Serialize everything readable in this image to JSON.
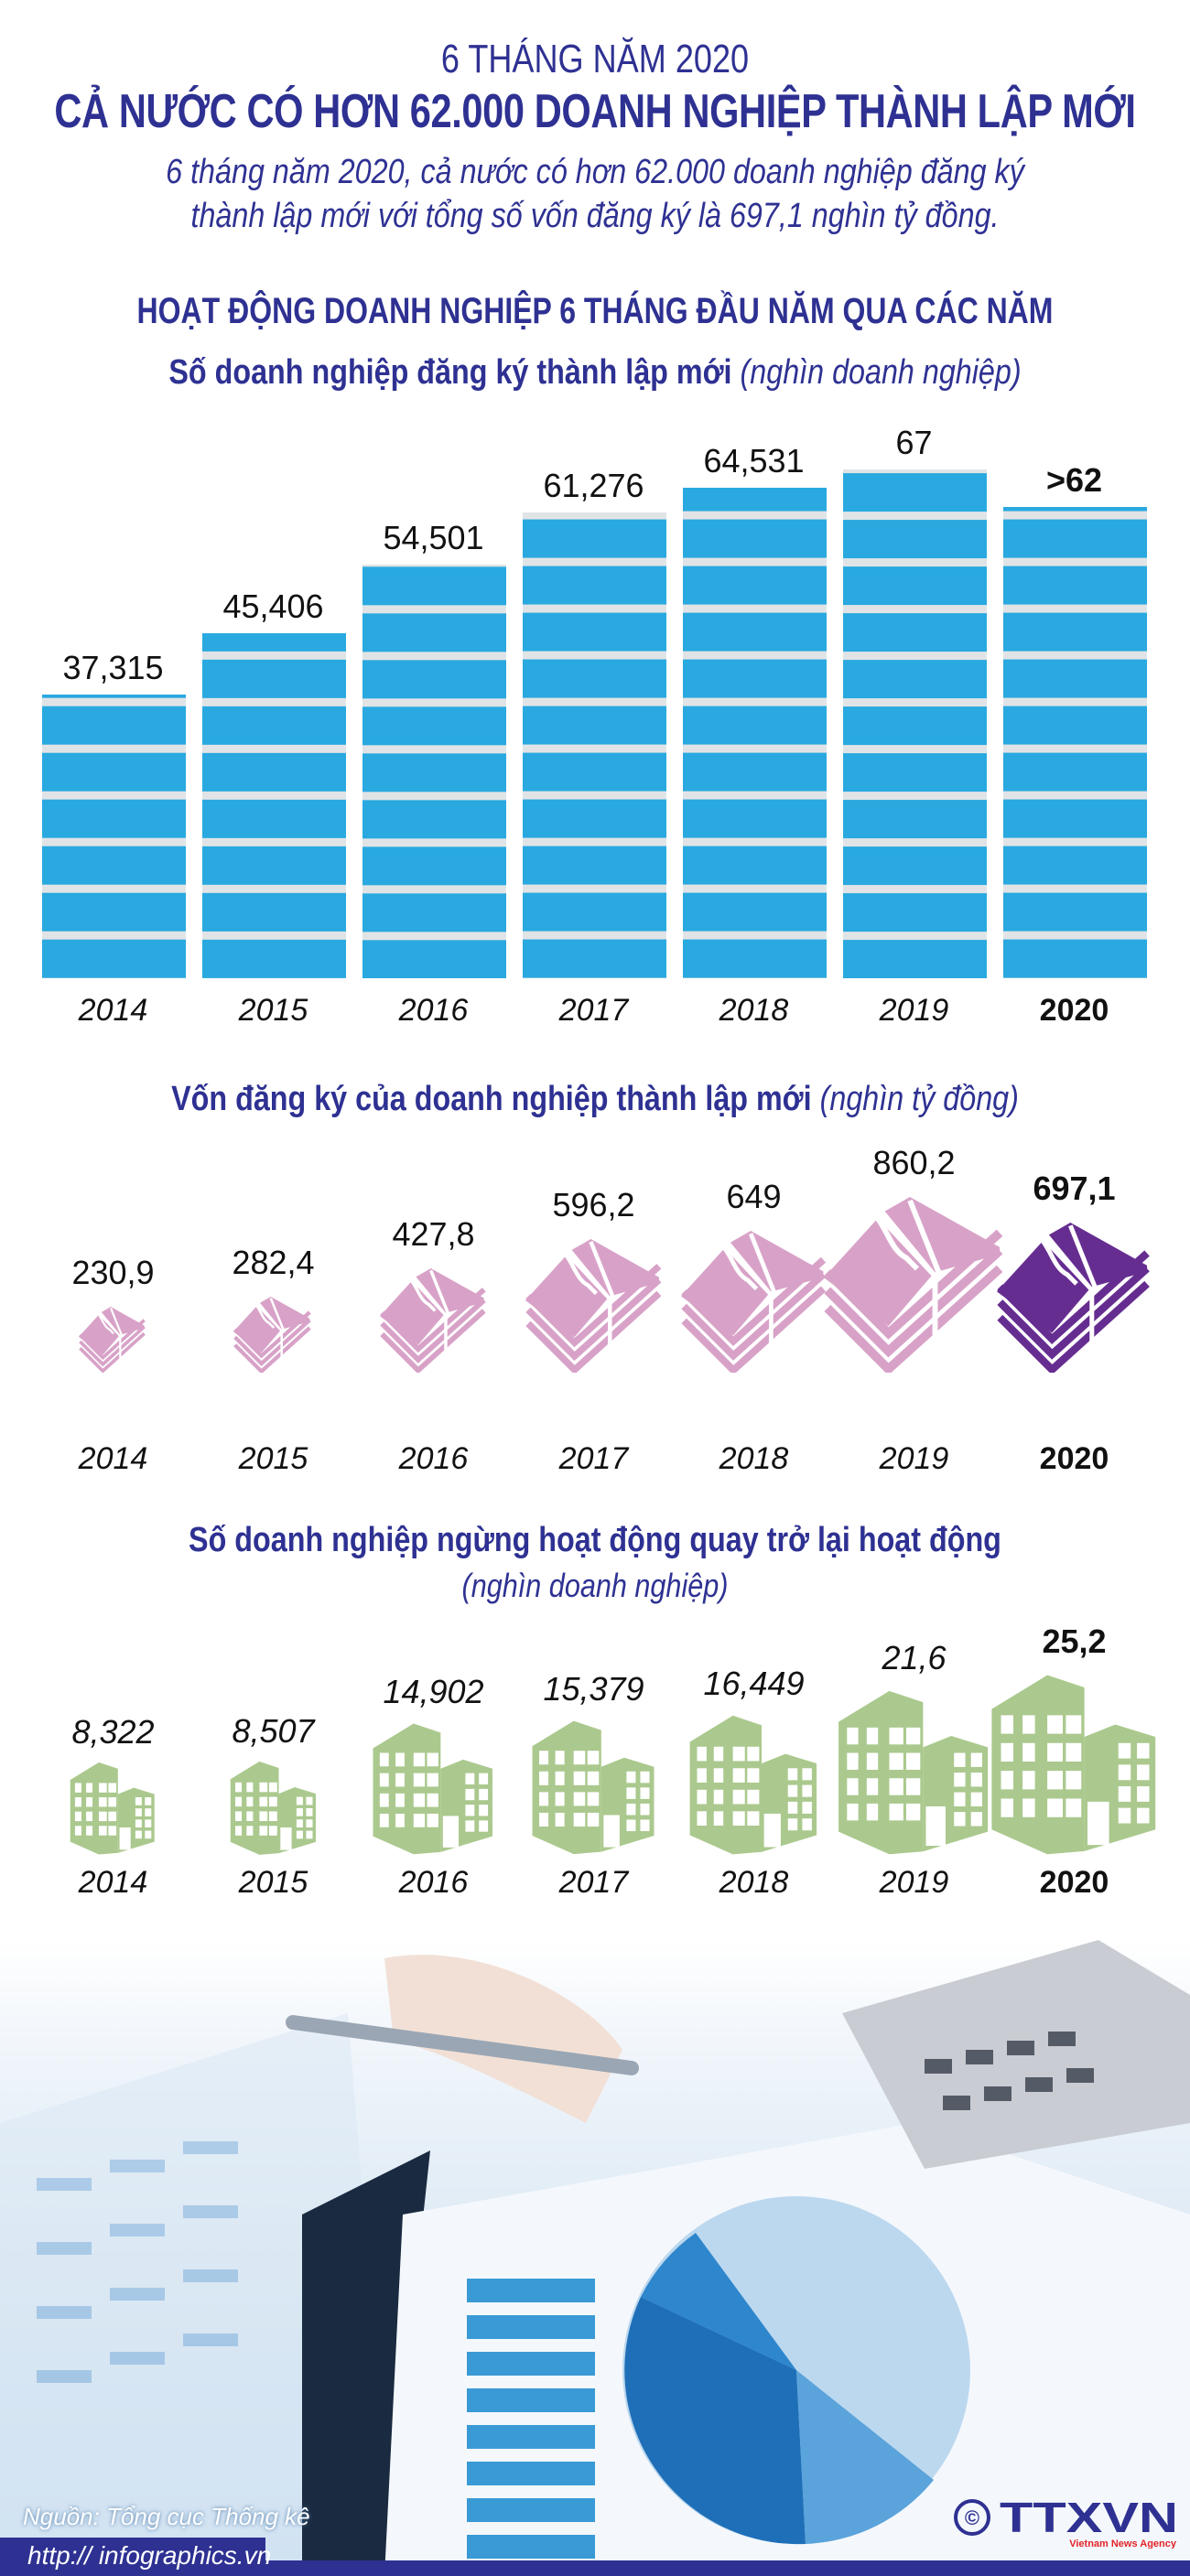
{
  "header": {
    "title_line1": "6 THÁNG NĂM 2020",
    "title_line2": "CẢ NƯỚC CÓ HƠN 62.000 DOANH NGHIỆP THÀNH LẬP MỚI",
    "summary_line1": "6 tháng năm 2020, cả nước có hơn 62.000 doanh nghiệp đăng ký",
    "summary_line2": "thành lập mới với tổng số vốn đăng ký là 697,1 nghìn tỷ đồng.",
    "section_title": "HOẠT ĐỘNG DOANH NGHIỆP 6 THÁNG ĐẦU NĂM QUA CÁC NĂM"
  },
  "colors": {
    "title": "#2e3192",
    "bar": "#29a9e0",
    "stripe": "#e1e4e6",
    "money": "#d8a2c8",
    "money_highlight": "#662d91",
    "building": "#abc98e"
  },
  "chart_data": [
    {
      "type": "bar",
      "title": "Số doanh nghiệp đăng ký thành lập mới",
      "unit": "(nghìn doanh nghiệp)",
      "categories": [
        "2014",
        "2015",
        "2016",
        "2017",
        "2018",
        "2019",
        "2020"
      ],
      "values": [
        37.315,
        45.406,
        54.501,
        61.276,
        64.531,
        67,
        62
      ],
      "labels": [
        "37,315",
        "45,406",
        "54,501",
        "61,276",
        "64,531",
        "67",
        ">62"
      ],
      "highlight": "2020"
    },
    {
      "type": "pictogram",
      "title": "Vốn đăng ký của doanh nghiệp thành lập mới",
      "unit": "(nghìn tỷ đồng)",
      "icon": "money-stack-icon",
      "categories": [
        "2014",
        "2015",
        "2016",
        "2017",
        "2018",
        "2019",
        "2020"
      ],
      "values": [
        230.9,
        282.4,
        427.8,
        596.2,
        649,
        860.2,
        697.1
      ],
      "labels": [
        "230,9",
        "282,4",
        "427,8",
        "596,2",
        "649",
        "860,2",
        "697,1"
      ],
      "highlight": "2020"
    },
    {
      "type": "pictogram",
      "title": "Số doanh nghiệp ngừng hoạt động quay trở lại hoạt động",
      "unit": "(nghìn doanh nghiệp)",
      "icon": "building-icon",
      "categories": [
        "2014",
        "2015",
        "2016",
        "2017",
        "2018",
        "2019",
        "2020"
      ],
      "values": [
        8.322,
        8.507,
        14.902,
        15.379,
        16.449,
        21.6,
        25.2
      ],
      "labels": [
        "8,322",
        "8,507",
        "14,902",
        "15,379",
        "16,449",
        "21,6",
        "25,2"
      ],
      "highlight": "2020"
    }
  ],
  "footer": {
    "source": "Nguồn: Tổng cục Thống kê",
    "url": "http:// infographics.vn",
    "logo_text": "TTXVN",
    "logo_subtext": "Vietnam News Agency",
    "copyright": "©"
  }
}
